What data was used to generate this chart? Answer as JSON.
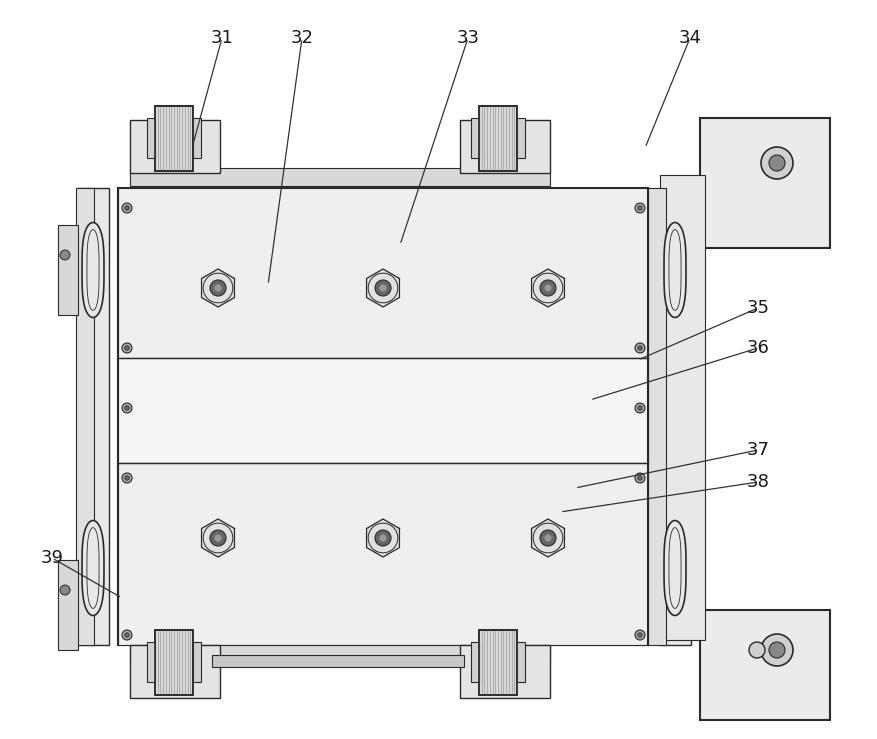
{
  "bg_color": "#ffffff",
  "lc": "#2a2a2a",
  "figsize": [
    8.78,
    7.39
  ],
  "dpi": 100,
  "annotations": [
    [
      "31",
      222,
      38,
      192,
      148
    ],
    [
      "32",
      302,
      38,
      268,
      285
    ],
    [
      "33",
      468,
      38,
      400,
      245
    ],
    [
      "34",
      690,
      38,
      645,
      148
    ],
    [
      "35",
      758,
      308,
      638,
      360
    ],
    [
      "36",
      758,
      348,
      590,
      400
    ],
    [
      "37",
      758,
      450,
      575,
      488
    ],
    [
      "38",
      758,
      482,
      560,
      512
    ],
    [
      "39",
      52,
      558,
      122,
      598
    ]
  ]
}
